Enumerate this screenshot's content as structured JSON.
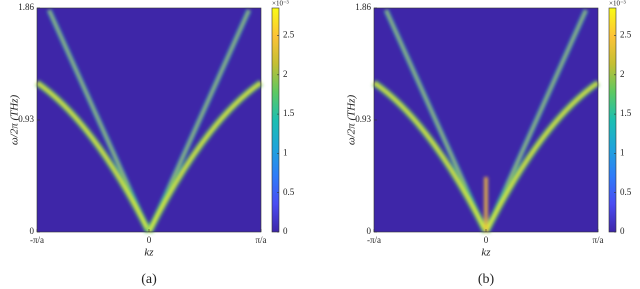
{
  "chart_data": [
    {
      "type": "heatmap",
      "caption": "(a)",
      "xlabel": "kz",
      "ylabel": "ω/2π (THz)",
      "xlim": [
        -1,
        1
      ],
      "xticks": [
        {
          "value": -1,
          "label": "-π/a"
        },
        0,
        {
          "value": 1,
          "label": "π/a"
        }
      ],
      "ylim": [
        0,
        1.86
      ],
      "yticks": [
        0,
        0.93,
        1.86
      ],
      "colorbar": {
        "lim": [
          0,
          2.85
        ],
        "ticks": [
          0,
          0.5,
          1,
          1.5,
          2,
          2.5
        ],
        "exponent": "×10⁻³",
        "colors": [
          "#3e26a8",
          "#4a4cf2",
          "#2f7cf9",
          "#1fa4db",
          "#1cbfb1",
          "#5dc962",
          "#c4bf33",
          "#fdc337",
          "#f9fb15"
        ]
      }
    },
    {
      "type": "heatmap",
      "caption": "(b)",
      "xlabel": "kz",
      "ylabel": "ω/2π (THz)",
      "xlim": [
        -1,
        1
      ],
      "xticks": [
        {
          "value": -1,
          "label": "-π/a"
        },
        0,
        {
          "value": 1,
          "label": "π/a"
        }
      ],
      "ylim": [
        0,
        1.86
      ],
      "yticks": [
        0,
        0.93,
        1.86
      ],
      "colorbar": {
        "lim": [
          0,
          2.85
        ],
        "ticks": [
          0,
          0.5,
          1,
          1.5,
          2,
          2.5
        ],
        "exponent": "×10⁻³",
        "colors": [
          "#3e26a8",
          "#4a4cf2",
          "#2f7cf9",
          "#1fa4db",
          "#1cbfb1",
          "#5dc962",
          "#c4bf33",
          "#fdc337",
          "#f9fb15"
        ]
      }
    }
  ]
}
